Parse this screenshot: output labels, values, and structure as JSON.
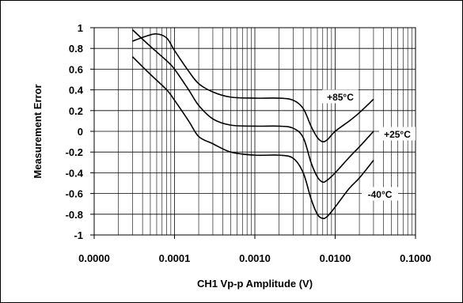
{
  "chart_data": {
    "type": "line",
    "xlabel": "CH1 Vp-p Amplitude (V)",
    "ylabel": "Measurement Error",
    "x_scale": "log",
    "xlim": [
      1e-05,
      0.1
    ],
    "ylim": [
      -1,
      1
    ],
    "grid": true,
    "x_ticks": [
      {
        "value": 1e-05,
        "label": "0.0000"
      },
      {
        "value": 0.0001,
        "label": "0.0001"
      },
      {
        "value": 0.001,
        "label": "0.0010"
      },
      {
        "value": 0.01,
        "label": "0.0100"
      },
      {
        "value": 0.1,
        "label": "0.1000"
      }
    ],
    "y_ticks": [
      {
        "value": 1,
        "label": "1"
      },
      {
        "value": 0.8,
        "label": "0.8"
      },
      {
        "value": 0.6,
        "label": "0.6"
      },
      {
        "value": 0.4,
        "label": "0.4"
      },
      {
        "value": 0.2,
        "label": "0.2"
      },
      {
        "value": 0,
        "label": "0"
      },
      {
        "value": -0.2,
        "label": "-0.2"
      },
      {
        "value": -0.4,
        "label": "-0.4"
      },
      {
        "value": -0.6,
        "label": "-0.6"
      },
      {
        "value": -0.8,
        "label": "-0.8"
      },
      {
        "value": -1,
        "label": "-1"
      }
    ],
    "series": [
      {
        "name": "+85°C",
        "x": [
          3e-05,
          4.5e-05,
          6e-05,
          8e-05,
          0.0001,
          0.00015,
          0.0002,
          0.0003,
          0.0005,
          0.001,
          0.002,
          0.003,
          0.004,
          0.005,
          0.006,
          0.007,
          0.008,
          0.01,
          0.015,
          0.02,
          0.03
        ],
        "y": [
          0.87,
          0.92,
          0.94,
          0.9,
          0.78,
          0.58,
          0.46,
          0.38,
          0.33,
          0.32,
          0.32,
          0.3,
          0.22,
          0.05,
          -0.06,
          -0.1,
          -0.08,
          0.0,
          0.1,
          0.18,
          0.31
        ]
      },
      {
        "name": "+25°C",
        "x": [
          3e-05,
          5e-05,
          8e-05,
          0.0001,
          0.00015,
          0.0002,
          0.0003,
          0.0005,
          0.001,
          0.002,
          0.003,
          0.004,
          0.005,
          0.006,
          0.007,
          0.008,
          0.01,
          0.015,
          0.02,
          0.03
        ],
        "y": [
          0.98,
          0.82,
          0.68,
          0.6,
          0.4,
          0.25,
          0.12,
          0.06,
          0.05,
          0.05,
          0.03,
          -0.06,
          -0.3,
          -0.44,
          -0.49,
          -0.47,
          -0.4,
          -0.25,
          -0.15,
          0.0
        ]
      },
      {
        "name": "-40°C",
        "x": [
          3e-05,
          5e-05,
          8e-05,
          0.0001,
          0.00015,
          0.0002,
          0.0003,
          0.0005,
          0.001,
          0.002,
          0.003,
          0.004,
          0.005,
          0.006,
          0.007,
          0.008,
          0.01,
          0.015,
          0.02,
          0.03
        ],
        "y": [
          0.72,
          0.55,
          0.4,
          0.3,
          0.1,
          -0.05,
          -0.12,
          -0.2,
          -0.23,
          -0.23,
          -0.26,
          -0.4,
          -0.65,
          -0.8,
          -0.84,
          -0.82,
          -0.73,
          -0.55,
          -0.45,
          -0.28
        ]
      }
    ],
    "annotations": [
      {
        "series": "+85°C",
        "text": "+85°C"
      },
      {
        "series": "+25°C",
        "text": "+25°C"
      },
      {
        "series": "-40°C",
        "text": "-40°C"
      }
    ]
  }
}
